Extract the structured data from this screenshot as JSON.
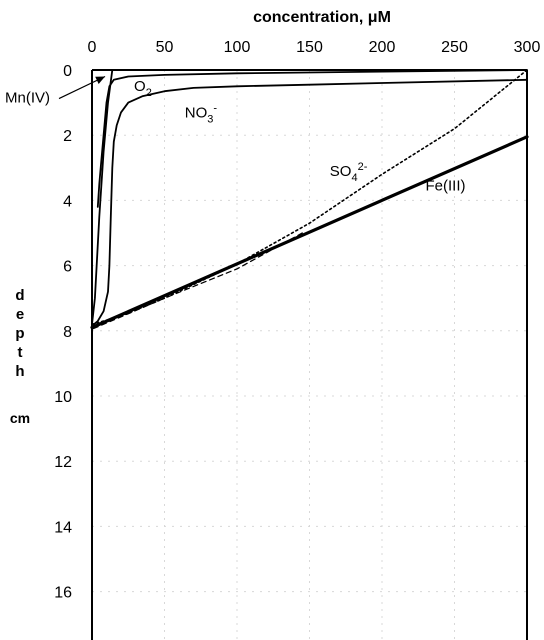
{
  "chart_data": {
    "type": "line",
    "title": "",
    "xlabel": "concentration, μM",
    "ylabel": "depth cm",
    "ylabel_letters": [
      "d",
      "e",
      "p",
      "t",
      "h"
    ],
    "ylabel_unit": "cm",
    "xlim": [
      0,
      300
    ],
    "ylim": [
      0,
      17.5
    ],
    "y_inverted": true,
    "x_axis_position": "top",
    "grid": true,
    "xticks": [
      0,
      50,
      100,
      150,
      200,
      250,
      300
    ],
    "yticks": [
      0,
      2,
      4,
      6,
      8,
      10,
      12,
      14,
      16
    ],
    "series": [
      {
        "name": "O2",
        "label_main": "O",
        "label_sub": "2",
        "label_sup": "",
        "style": "solid",
        "points": [
          [
            300,
            0
          ],
          [
            200,
            0.05
          ],
          [
            100,
            0.1
          ],
          [
            50,
            0.15
          ],
          [
            25,
            0.2
          ],
          [
            15,
            0.3
          ],
          [
            12,
            0.5
          ],
          [
            10,
            1.0
          ],
          [
            8,
            2.0
          ],
          [
            6,
            3.0
          ],
          [
            5,
            3.5
          ],
          [
            4,
            4.2
          ]
        ]
      },
      {
        "name": "NO3-",
        "label_main": "NO",
        "label_sub": "3",
        "label_sup": "-",
        "style": "solid",
        "points": [
          [
            300,
            0.3
          ],
          [
            200,
            0.4
          ],
          [
            150,
            0.45
          ],
          [
            100,
            0.5
          ],
          [
            70,
            0.55
          ],
          [
            50,
            0.65
          ],
          [
            35,
            0.8
          ],
          [
            25,
            1.0
          ],
          [
            20,
            1.3
          ],
          [
            17,
            1.7
          ],
          [
            15,
            2.2
          ],
          [
            14,
            3.0
          ],
          [
            13,
            4.5
          ],
          [
            12,
            6.0
          ],
          [
            11,
            6.8
          ],
          [
            8,
            7.4
          ],
          [
            4,
            7.7
          ],
          [
            0,
            7.85
          ]
        ]
      },
      {
        "name": "SO42-",
        "label_main": "SO",
        "label_sub": "4",
        "label_sup": "2-",
        "style": "dotted",
        "points": [
          [
            300,
            0
          ],
          [
            250,
            1.8
          ],
          [
            200,
            3.2
          ],
          [
            150,
            4.7
          ],
          [
            100,
            5.95
          ],
          [
            50,
            7.0
          ],
          [
            20,
            7.55
          ],
          [
            0,
            7.8
          ]
        ]
      },
      {
        "name": "SO42- lower",
        "style": "dashed",
        "points": [
          [
            145,
            5.0
          ],
          [
            100,
            6.1
          ],
          [
            50,
            7.0
          ],
          [
            0,
            7.95
          ]
        ]
      },
      {
        "name": "Fe(III)",
        "label_main": "Fe(III)",
        "label_sub": "",
        "label_sup": "",
        "style": "bold",
        "points": [
          [
            300,
            2.05
          ],
          [
            0,
            7.9
          ]
        ]
      },
      {
        "name": "Mn(IV)",
        "label_main": "Mn(IV)",
        "label_sub": "",
        "label_sup": "",
        "style": "solid",
        "points": [
          [
            14,
            0
          ],
          [
            11,
            1.0
          ],
          [
            8,
            2.5
          ],
          [
            5,
            4.5
          ],
          [
            2,
            7.0
          ],
          [
            0,
            7.8
          ]
        ]
      }
    ],
    "annotations": [
      {
        "text_main": "O",
        "text_sub": "2",
        "text_sup": "",
        "x": 29,
        "y": 0.65
      },
      {
        "text_main": "NO",
        "text_sub": "3",
        "text_sup": "-",
        "x": 64,
        "y": 1.45
      },
      {
        "text_main": "SO",
        "text_sub": "4",
        "text_sup": "2-",
        "x": 164,
        "y": 3.25
      },
      {
        "text_main": "Fe(III)",
        "text_sub": "",
        "text_sup": "",
        "x": 230,
        "y": 3.7
      },
      {
        "text_main": "Mn(IV)",
        "text_sub": "",
        "text_sup": "",
        "x": -60,
        "y": 1.0,
        "arrow_to": [
          9,
          0.2
        ]
      }
    ]
  },
  "colors": {
    "axis": "#000000",
    "grid": "#d8d8d8",
    "line": "#000000"
  }
}
